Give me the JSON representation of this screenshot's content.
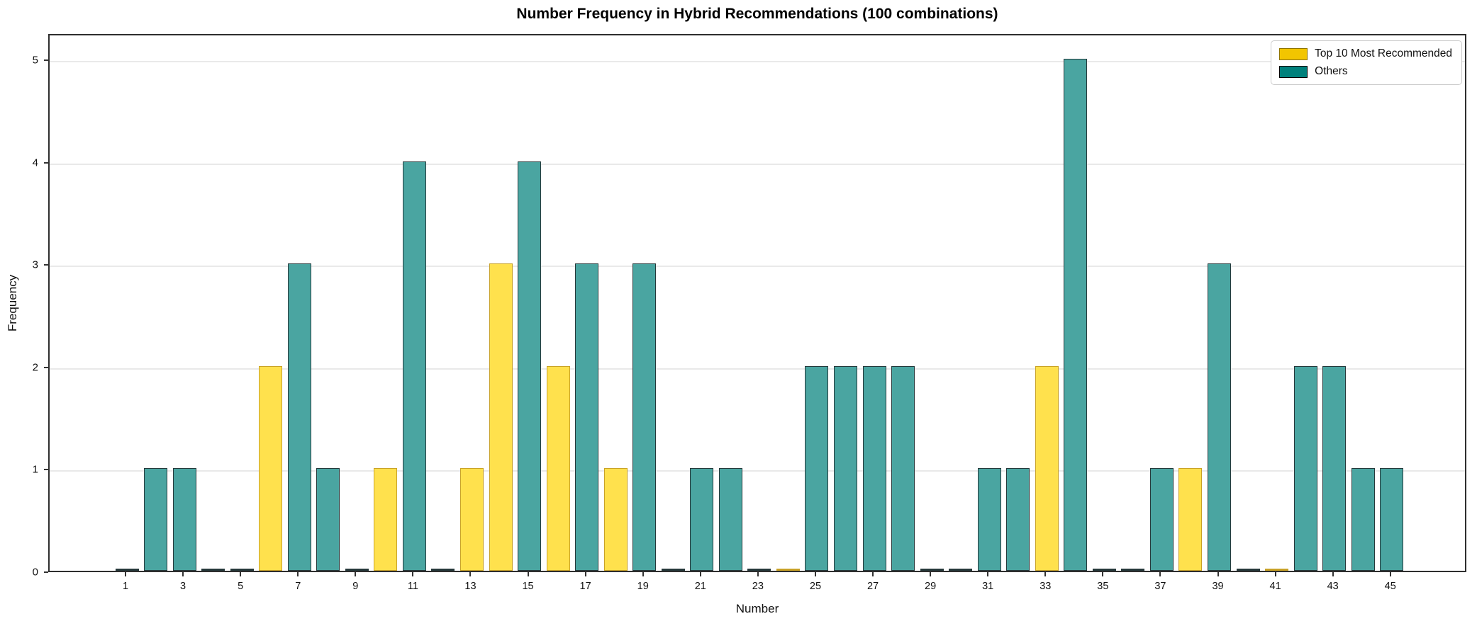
{
  "chart_data": {
    "type": "bar",
    "title": "Number Frequency in Hybrid Recommendations (100 combinations)",
    "xlabel": "Number",
    "ylabel": "Frequency",
    "categories": [
      1,
      2,
      3,
      4,
      5,
      6,
      7,
      8,
      9,
      10,
      11,
      12,
      13,
      14,
      15,
      16,
      17,
      18,
      19,
      20,
      21,
      22,
      23,
      24,
      25,
      26,
      27,
      28,
      29,
      30,
      31,
      32,
      33,
      34,
      35,
      36,
      37,
      38,
      39,
      40,
      41,
      42,
      43,
      44,
      45
    ],
    "values": [
      0,
      1,
      1,
      0,
      0,
      2,
      3,
      1,
      0,
      1,
      4,
      0,
      1,
      3,
      4,
      2,
      3,
      1,
      3,
      0,
      1,
      1,
      0,
      0,
      2,
      2,
      2,
      2,
      0,
      0,
      1,
      1,
      2,
      5,
      0,
      0,
      1,
      1,
      3,
      0,
      0,
      2,
      2,
      1,
      1
    ],
    "groups": [
      "others",
      "others",
      "others",
      "others",
      "others",
      "top10",
      "others",
      "others",
      "others",
      "top10",
      "others",
      "others",
      "top10",
      "top10",
      "others",
      "top10",
      "others",
      "top10",
      "others",
      "others",
      "others",
      "others",
      "others",
      "top10",
      "others",
      "others",
      "others",
      "others",
      "others",
      "others",
      "others",
      "others",
      "top10",
      "others",
      "others",
      "others",
      "others",
      "top10",
      "others",
      "others",
      "top10",
      "others",
      "others",
      "others",
      "others"
    ],
    "top10_numbers": [
      6,
      10,
      13,
      14,
      16,
      18,
      24,
      33,
      38,
      41
    ],
    "legend": [
      {
        "label": "Top 10 Most Recommended",
        "group": "top10"
      },
      {
        "label": "Others",
        "group": "others"
      }
    ],
    "legend_position": "upper right",
    "grid": "horizontal",
    "xticks": [
      1,
      3,
      5,
      7,
      9,
      11,
      13,
      15,
      17,
      19,
      21,
      23,
      25,
      27,
      29,
      31,
      33,
      35,
      37,
      39,
      41,
      43,
      45
    ],
    "yticks": [
      0,
      1,
      2,
      3,
      4,
      5
    ],
    "ylim": [
      0,
      5.25
    ],
    "colors": {
      "top10_fill": "#FFE14D",
      "top10_edge": "#C9A227",
      "others_fill": "#4AA5A1",
      "others_edge": "#26393B",
      "legend_top10_fill": "#F2C500",
      "legend_top10_edge": "#8F7400",
      "legend_others_fill": "#00817C",
      "legend_others_edge": "#000000",
      "grid": "#E9E9E9",
      "spine": "#2E2E2E"
    }
  }
}
